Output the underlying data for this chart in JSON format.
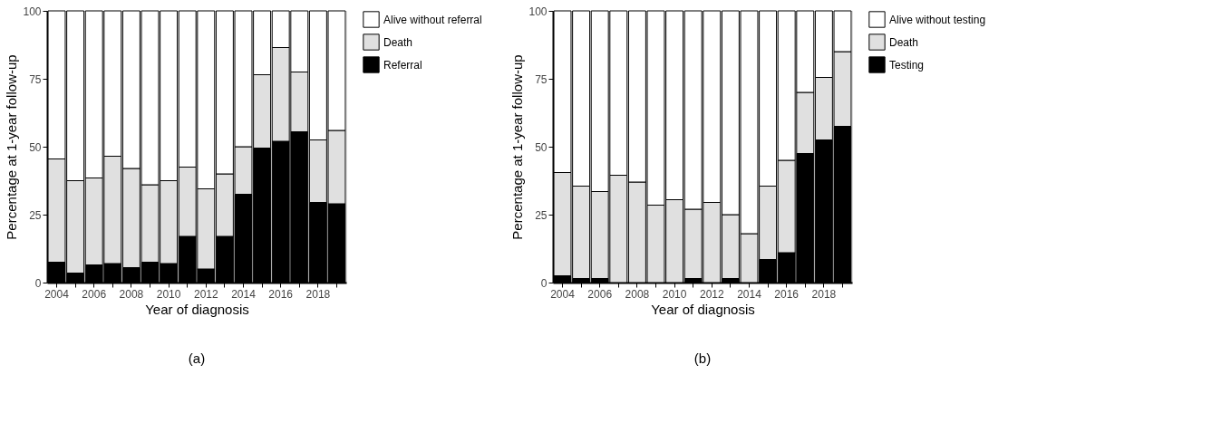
{
  "chart_data": [
    {
      "type": "bar",
      "stacked": true,
      "xlabel": "Year of diagnosis",
      "ylabel": "Percentage at 1-year follow-up",
      "categories": [
        "2004",
        null,
        "2006",
        null,
        "2008",
        null,
        "2010",
        null,
        "2012",
        null,
        "2014",
        null,
        "2016",
        null,
        "2018",
        null
      ],
      "ylim": [
        0,
        100
      ],
      "yticks": [
        0,
        25,
        50,
        75,
        100
      ],
      "grid": false,
      "legend": "right",
      "annotations": [
        "(a)"
      ],
      "series": [
        {
          "name": "Referral",
          "color": "#000000",
          "values": [
            7.5,
            3.5,
            6.5,
            7,
            5.5,
            7.5,
            7,
            17,
            5,
            17,
            32.5,
            49.5,
            52,
            55.5,
            29.5,
            29
          ]
        },
        {
          "name": "Death",
          "color": "#e0e0e0",
          "values": [
            38,
            34,
            32,
            39.5,
            36.5,
            28.5,
            30.5,
            25.5,
            29.5,
            23,
            17.5,
            27,
            34.5,
            22,
            23,
            27
          ]
        },
        {
          "name": "Alive without referral",
          "color": "#ffffff",
          "values": [
            54.5,
            62.5,
            61.5,
            53.5,
            58,
            64,
            62.5,
            57.5,
            65.5,
            60,
            50,
            23.5,
            13.5,
            22.5,
            47.5,
            44
          ]
        }
      ]
    },
    {
      "type": "bar",
      "stacked": true,
      "xlabel": "Year of diagnosis",
      "ylabel": "Percentage at 1-year follow-up",
      "categories": [
        "2004",
        null,
        "2006",
        null,
        "2008",
        null,
        "2010",
        null,
        "2012",
        null,
        "2014",
        null,
        "2016",
        null,
        "2018",
        null
      ],
      "ylim": [
        0,
        100
      ],
      "yticks": [
        0,
        25,
        50,
        75,
        100
      ],
      "grid": false,
      "legend": "right",
      "annotations": [
        "(b)"
      ],
      "series": [
        {
          "name": "Testing",
          "color": "#000000",
          "values": [
            2.5,
            1.5,
            1.5,
            0,
            0,
            0,
            0,
            1.5,
            0,
            1.5,
            0,
            8.5,
            11,
            47.5,
            52.5,
            57.5
          ]
        },
        {
          "name": "Death",
          "color": "#e0e0e0",
          "values": [
            38,
            34,
            32,
            39.5,
            37,
            28.5,
            30.5,
            25.5,
            29.5,
            23.5,
            18,
            27,
            34,
            22.5,
            23,
            27.5
          ]
        },
        {
          "name": "Alive without testing",
          "color": "#ffffff",
          "values": [
            59.5,
            64.5,
            66.5,
            60.5,
            63,
            71.5,
            69.5,
            73,
            70.5,
            75,
            82,
            64.5,
            55,
            30,
            24.5,
            15
          ]
        }
      ]
    }
  ]
}
